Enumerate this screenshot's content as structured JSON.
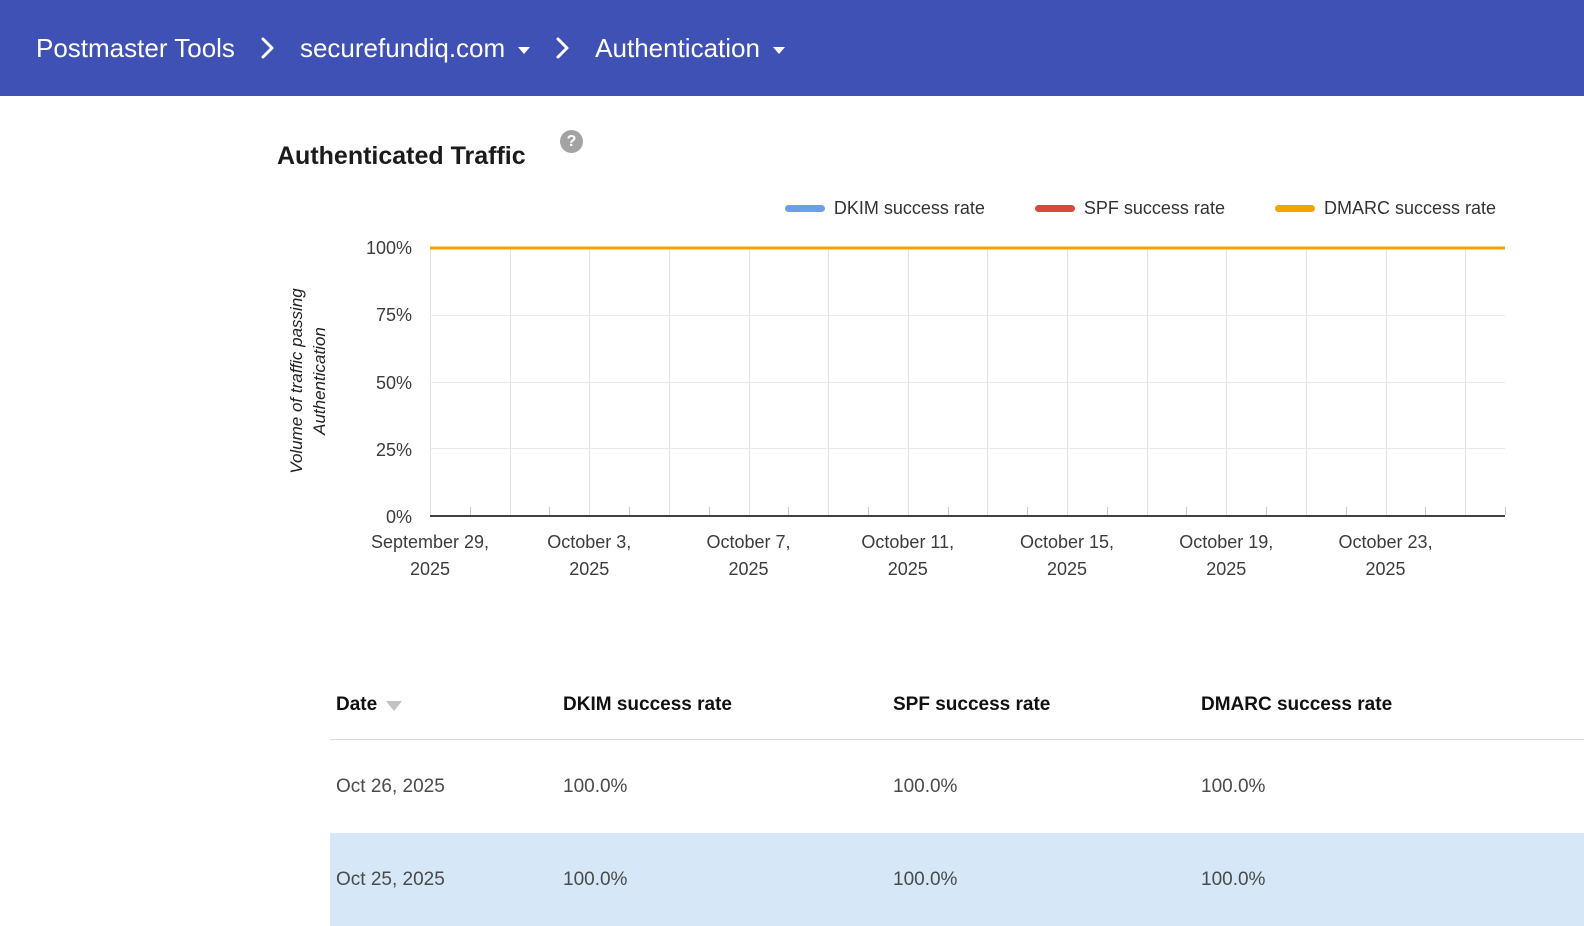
{
  "nav": {
    "app_title": "Postmaster Tools",
    "breadcrumb": [
      {
        "label": "securefundiq.com",
        "has_dropdown": true
      },
      {
        "label": "Authentication",
        "has_dropdown": true
      }
    ]
  },
  "page": {
    "title": "Authenticated Traffic",
    "help_icon": "?"
  },
  "chart_data": {
    "type": "line",
    "title": "Authenticated Traffic",
    "ylabel": "Volume of traffic passing Authentication",
    "ylabel_lines": [
      "Volume of traffic passing",
      "Authentication"
    ],
    "ylim": [
      0,
      100
    ],
    "grid": true,
    "legend_position": "top-right",
    "y_ticks": [
      {
        "label": "100%",
        "value": 100
      },
      {
        "label": "75%",
        "value": 75
      },
      {
        "label": "50%",
        "value": 50
      },
      {
        "label": "25%",
        "value": 25
      },
      {
        "label": "0%",
        "value": 0
      }
    ],
    "x_start": "September 29, 2025",
    "x_end": "October 26, 2025",
    "total_days": 27,
    "x_major_ticks": [
      {
        "day": 0,
        "line1": "September 29,",
        "line2": "2025"
      },
      {
        "day": 4,
        "line1": "October 3,",
        "line2": "2025"
      },
      {
        "day": 8,
        "line1": "October 7,",
        "line2": "2025"
      },
      {
        "day": 12,
        "line1": "October 11,",
        "line2": "2025"
      },
      {
        "day": 16,
        "line1": "October 15,",
        "line2": "2025"
      },
      {
        "day": 20,
        "line1": "October 19,",
        "line2": "2025"
      },
      {
        "day": 24,
        "line1": "October 23,",
        "line2": "2025"
      }
    ],
    "series": [
      {
        "name": "DKIM success rate",
        "color": "#6D9EEB",
        "values": [
          100,
          100,
          100,
          100,
          100,
          100,
          100,
          100,
          100,
          100,
          100,
          100,
          100,
          100,
          100,
          100,
          100,
          100,
          100,
          100,
          100,
          100,
          100,
          100,
          100,
          100,
          100,
          100
        ]
      },
      {
        "name": "SPF success rate",
        "color": "#D6493E",
        "values": [
          100,
          100,
          100,
          100,
          100,
          100,
          100,
          100,
          100,
          100,
          100,
          100,
          100,
          100,
          100,
          100,
          100,
          100,
          100,
          100,
          100,
          100,
          100,
          100,
          100,
          100,
          100,
          100
        ]
      },
      {
        "name": "DMARC success rate",
        "color": "#F5A300",
        "values": [
          100,
          100,
          100,
          100,
          100,
          100,
          100,
          100,
          100,
          100,
          100,
          100,
          100,
          100,
          100,
          100,
          100,
          100,
          100,
          100,
          100,
          100,
          100,
          100,
          100,
          100,
          100,
          100
        ]
      }
    ]
  },
  "table": {
    "columns": [
      {
        "label": "Date",
        "sortable": true,
        "sorted": "desc"
      },
      {
        "label": "DKIM success rate"
      },
      {
        "label": "SPF success rate"
      },
      {
        "label": "DMARC success rate"
      }
    ],
    "rows": [
      {
        "cells": [
          "Oct 26, 2025",
          "100.0%",
          "100.0%",
          "100.0%"
        ],
        "highlighted": false
      },
      {
        "cells": [
          "Oct 25, 2025",
          "100.0%",
          "100.0%",
          "100.0%"
        ],
        "highlighted": true
      }
    ]
  },
  "colors": {
    "header_bg": "#3F51B5",
    "row_highlight": "#D6E8F7",
    "series_dkim": "#6D9EEB",
    "series_spf": "#D6493E",
    "series_dmarc": "#F5A300"
  }
}
